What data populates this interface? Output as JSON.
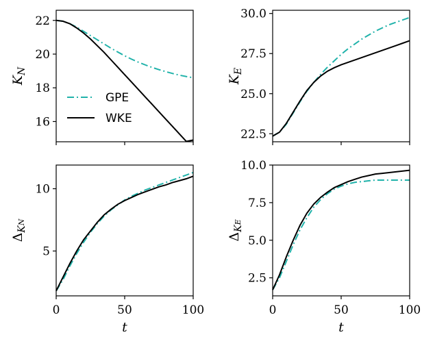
{
  "chart_data": [
    {
      "type": "line",
      "ylabel": "K_N",
      "xlabel": "",
      "xlim": [
        0,
        100
      ],
      "ylim": [
        14.8,
        22.6
      ],
      "yticks": [
        16,
        18,
        20,
        22
      ],
      "xticks": [
        0,
        50,
        100
      ],
      "show_xticklabels": false,
      "legend": {
        "position": "lower-left",
        "entries": [
          "GPE",
          "WKE"
        ]
      },
      "series": [
        {
          "name": "GPE",
          "style": "dashdot",
          "color": "#20b2aa",
          "x": [
            0,
            5,
            10,
            15,
            20,
            25,
            30,
            35,
            40,
            45,
            50,
            55,
            60,
            65,
            70,
            75,
            80,
            85,
            90,
            95,
            100
          ],
          "y": [
            22.0,
            21.95,
            21.8,
            21.6,
            21.35,
            21.1,
            20.85,
            20.6,
            20.35,
            20.12,
            19.9,
            19.7,
            19.52,
            19.36,
            19.21,
            19.08,
            18.96,
            18.85,
            18.75,
            18.67,
            18.6
          ]
        },
        {
          "name": "WKE",
          "style": "solid",
          "color": "#000000",
          "x": [
            0,
            5,
            10,
            15,
            20,
            25,
            30,
            35,
            40,
            45,
            50,
            55,
            60,
            65,
            70,
            75,
            80,
            85,
            90,
            95,
            100
          ],
          "y": [
            22.0,
            21.95,
            21.8,
            21.55,
            21.25,
            20.9,
            20.5,
            20.1,
            19.66,
            19.22,
            18.78,
            18.34,
            17.9,
            17.46,
            17.02,
            16.58,
            16.14,
            15.7,
            15.26,
            14.82,
            14.9
          ]
        }
      ]
    },
    {
      "type": "line",
      "ylabel": "K_E",
      "xlabel": "",
      "xlim": [
        0,
        100
      ],
      "ylim": [
        22.0,
        30.2
      ],
      "yticks": [
        22.5,
        25.0,
        27.5,
        30.0
      ],
      "xticks": [
        0,
        50,
        100
      ],
      "show_xticklabels": false,
      "series": [
        {
          "name": "GPE",
          "style": "dashdot",
          "color": "#20b2aa",
          "x": [
            0,
            5,
            10,
            15,
            20,
            25,
            30,
            35,
            40,
            45,
            50,
            55,
            60,
            65,
            70,
            75,
            80,
            85,
            90,
            95,
            100
          ],
          "y": [
            22.35,
            22.6,
            23.1,
            23.8,
            24.5,
            25.15,
            25.7,
            26.2,
            26.65,
            27.05,
            27.45,
            27.8,
            28.1,
            28.4,
            28.65,
            28.9,
            29.1,
            29.3,
            29.45,
            29.6,
            29.75
          ]
        },
        {
          "name": "WKE",
          "style": "solid",
          "color": "#000000",
          "x": [
            0,
            5,
            10,
            15,
            20,
            25,
            30,
            35,
            40,
            45,
            50,
            55,
            60,
            65,
            70,
            75,
            80,
            85,
            90,
            95,
            100
          ],
          "y": [
            22.35,
            22.6,
            23.15,
            23.85,
            24.55,
            25.2,
            25.7,
            26.1,
            26.4,
            26.62,
            26.8,
            26.95,
            27.1,
            27.25,
            27.4,
            27.55,
            27.7,
            27.85,
            28.0,
            28.15,
            28.3
          ]
        }
      ]
    },
    {
      "type": "line",
      "ylabel": "Δ_{K_N}",
      "xlabel": "t",
      "xlim": [
        0,
        100
      ],
      "ylim": [
        1.4,
        11.9
      ],
      "yticks": [
        5,
        10
      ],
      "xticks": [
        0,
        50,
        100
      ],
      "show_xticklabels": true,
      "series": [
        {
          "name": "GPE",
          "style": "dashdot",
          "color": "#20b2aa",
          "x": [
            0,
            5,
            10,
            15,
            20,
            25,
            30,
            35,
            40,
            45,
            50,
            55,
            60,
            65,
            70,
            75,
            80,
            85,
            90,
            95,
            100
          ],
          "y": [
            1.8,
            2.7,
            3.8,
            4.8,
            5.7,
            6.5,
            7.2,
            7.8,
            8.3,
            8.7,
            9.1,
            9.4,
            9.65,
            9.9,
            10.1,
            10.3,
            10.5,
            10.7,
            10.9,
            11.1,
            11.3
          ]
        },
        {
          "name": "WKE",
          "style": "solid",
          "color": "#000000",
          "x": [
            0,
            5,
            10,
            15,
            20,
            25,
            30,
            35,
            40,
            45,
            50,
            55,
            60,
            65,
            70,
            75,
            80,
            85,
            90,
            95,
            100
          ],
          "y": [
            1.8,
            2.9,
            4.0,
            5.0,
            5.9,
            6.6,
            7.3,
            7.9,
            8.35,
            8.75,
            9.05,
            9.3,
            9.55,
            9.75,
            9.95,
            10.15,
            10.3,
            10.5,
            10.65,
            10.8,
            11.0
          ]
        }
      ]
    },
    {
      "type": "line",
      "ylabel": "Δ_{K_E}",
      "xlabel": "t",
      "xlim": [
        0,
        100
      ],
      "ylim": [
        1.3,
        10.0
      ],
      "yticks": [
        2.5,
        5.0,
        7.5,
        10.0
      ],
      "xticks": [
        0,
        50,
        100
      ],
      "show_xticklabels": true,
      "series": [
        {
          "name": "GPE",
          "style": "dashdot",
          "color": "#20b2aa",
          "x": [
            0,
            5,
            10,
            15,
            20,
            25,
            30,
            35,
            40,
            45,
            50,
            55,
            60,
            65,
            70,
            75,
            80,
            85,
            90,
            95,
            100
          ],
          "y": [
            1.7,
            2.5,
            3.6,
            4.7,
            5.7,
            6.5,
            7.2,
            7.7,
            8.1,
            8.4,
            8.6,
            8.75,
            8.85,
            8.9,
            8.95,
            9.0,
            9.0,
            9.0,
            9.0,
            9.0,
            9.0
          ]
        },
        {
          "name": "WKE",
          "style": "solid",
          "color": "#000000",
          "x": [
            0,
            5,
            10,
            15,
            20,
            25,
            30,
            35,
            40,
            45,
            50,
            55,
            60,
            65,
            70,
            75,
            80,
            85,
            90,
            95,
            100
          ],
          "y": [
            1.7,
            2.7,
            3.9,
            5.0,
            6.0,
            6.8,
            7.4,
            7.85,
            8.2,
            8.5,
            8.7,
            8.9,
            9.05,
            9.2,
            9.3,
            9.4,
            9.45,
            9.5,
            9.55,
            9.6,
            9.65
          ]
        }
      ]
    }
  ]
}
